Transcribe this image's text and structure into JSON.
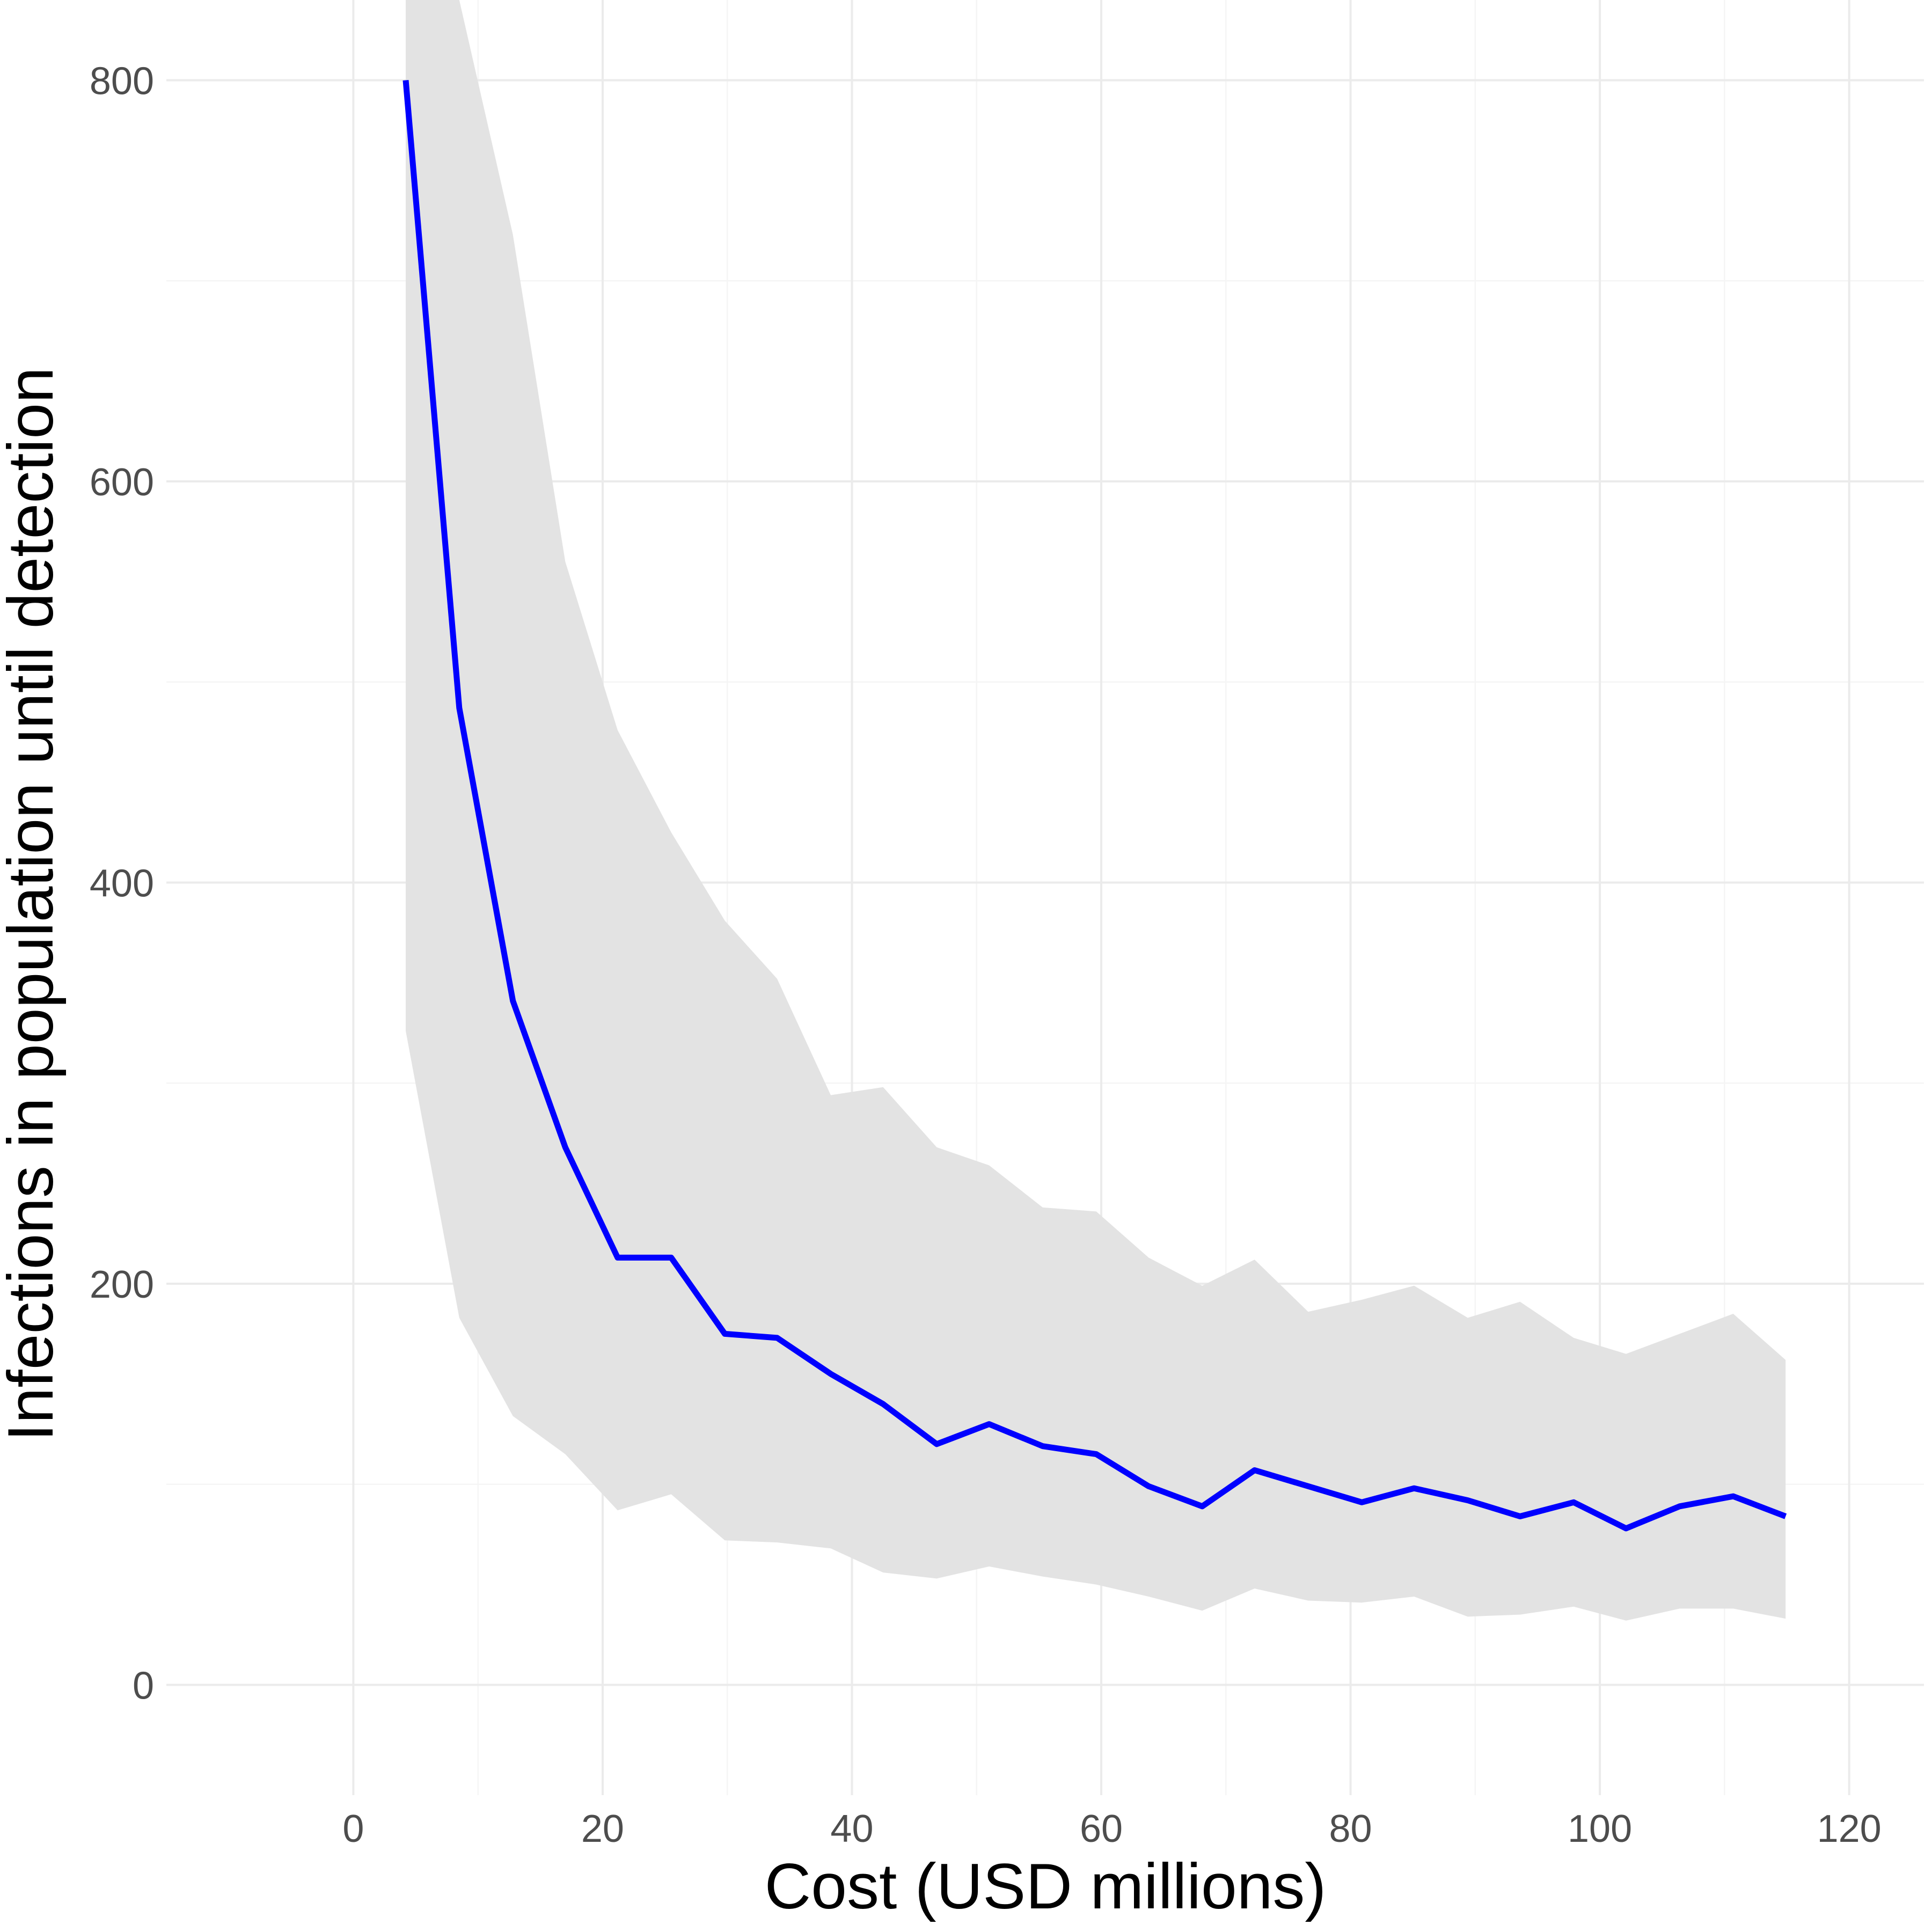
{
  "chart_data": {
    "type": "line",
    "title": "",
    "xlabel": "Cost (USD millions)",
    "ylabel": "Infections in population until detection",
    "xlim": [
      -15,
      126
    ],
    "ylim": [
      -55,
      840
    ],
    "x_ticks": [
      0,
      20,
      40,
      60,
      80,
      100,
      120
    ],
    "y_ticks": [
      0,
      200,
      400,
      600,
      800
    ],
    "x_tick_labels": [
      "0",
      "20",
      "40",
      "60",
      "80",
      "100",
      "120"
    ],
    "y_tick_labels": [
      "0",
      "200",
      "400",
      "600",
      "800"
    ],
    "grid": true,
    "legend": "none",
    "colors": {
      "line": "#0000ff",
      "ribbon": "#e3e3e3",
      "grid_major": "#ebebeb",
      "grid_minor": "#f5f5f5",
      "tick_text": "#4d4d4d",
      "axis_title": "#000000"
    },
    "series": [
      {
        "x": [
          4.2,
          8.5,
          12.8,
          17.0,
          21.2,
          25.5,
          29.8,
          34.0,
          38.3,
          42.5,
          46.8,
          51.0,
          55.3,
          59.6,
          63.8,
          68.1,
          72.3,
          76.6,
          80.9,
          85.1,
          89.4,
          93.6,
          97.9,
          102.1,
          106.4,
          110.7,
          114.9
        ],
        "y": [
          800,
          487,
          341,
          268,
          213,
          213,
          175,
          173,
          155,
          140,
          120,
          130,
          119,
          115,
          99,
          89,
          107,
          99,
          91,
          98,
          92,
          84,
          91,
          78,
          89,
          94,
          84
        ],
        "lower": [
          326,
          183,
          134,
          115,
          87,
          95,
          72,
          71,
          68,
          56,
          53,
          59,
          54,
          50,
          44,
          37,
          48,
          42,
          41,
          44,
          34,
          35,
          39,
          32,
          38,
          38,
          33
        ],
        "upper": [
          840,
          840,
          723,
          560,
          476,
          425,
          381,
          352,
          294,
          298,
          268,
          259,
          238,
          236,
          213,
          199,
          212,
          186,
          192,
          199,
          183,
          191,
          173,
          165,
          175,
          185,
          162
        ]
      }
    ]
  }
}
